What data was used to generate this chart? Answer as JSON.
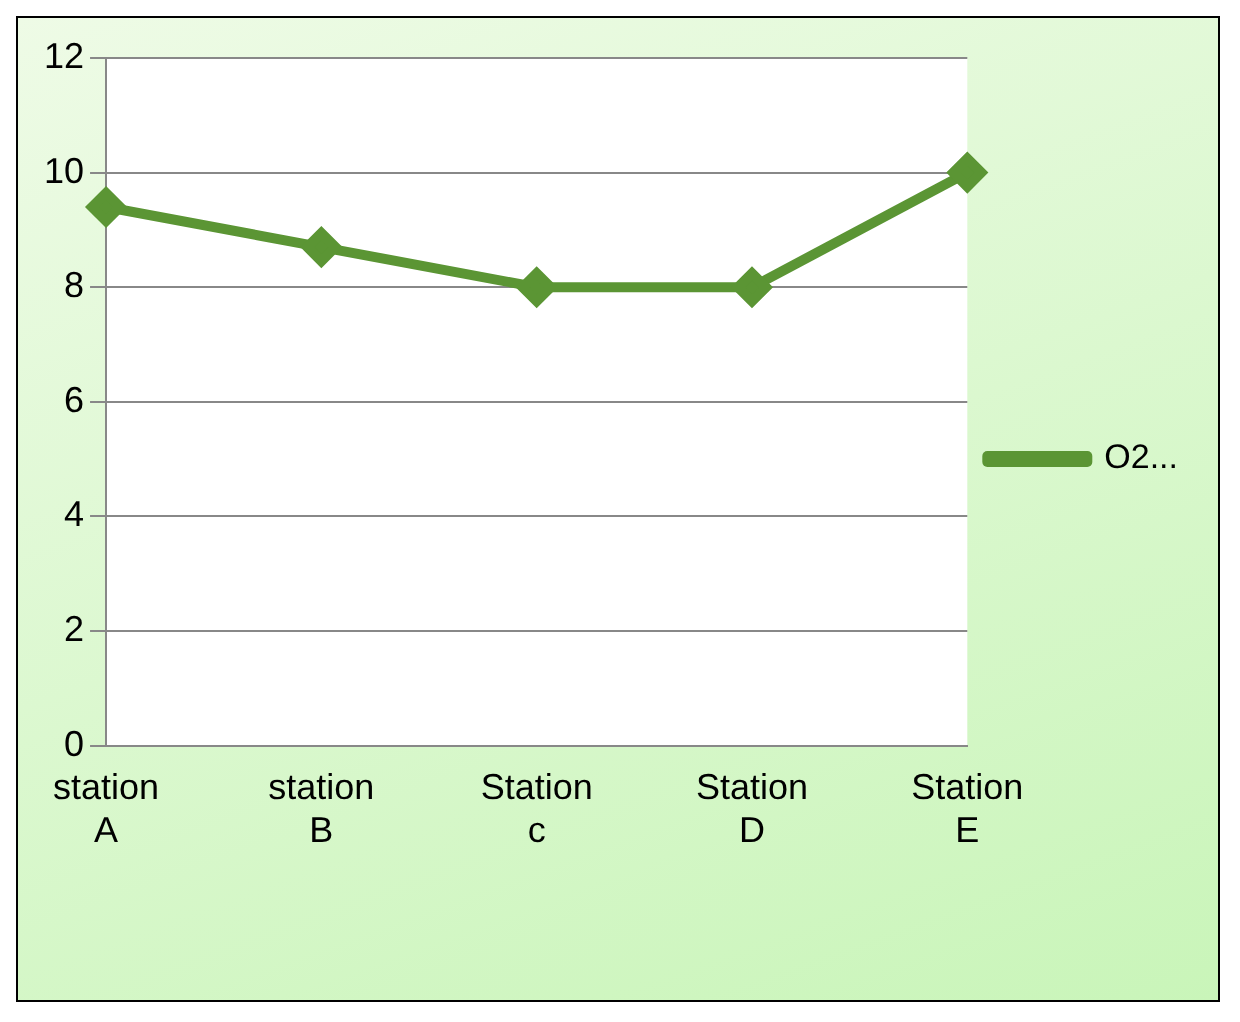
{
  "chart_data": {
    "type": "line",
    "categories": [
      "station\nA",
      "station\nB",
      "Station\nc",
      "Station\nD",
      "Station\nE"
    ],
    "series": [
      {
        "name": "O2...",
        "color": "#5b9534",
        "values": [
          9.4,
          8.7,
          8,
          8,
          10
        ]
      }
    ],
    "ylim": [
      0,
      12
    ],
    "yticks": [
      0,
      2,
      4,
      6,
      8,
      10,
      12
    ],
    "grid": "y",
    "legend": "right",
    "marker": "diamond",
    "line_style": "solid"
  }
}
